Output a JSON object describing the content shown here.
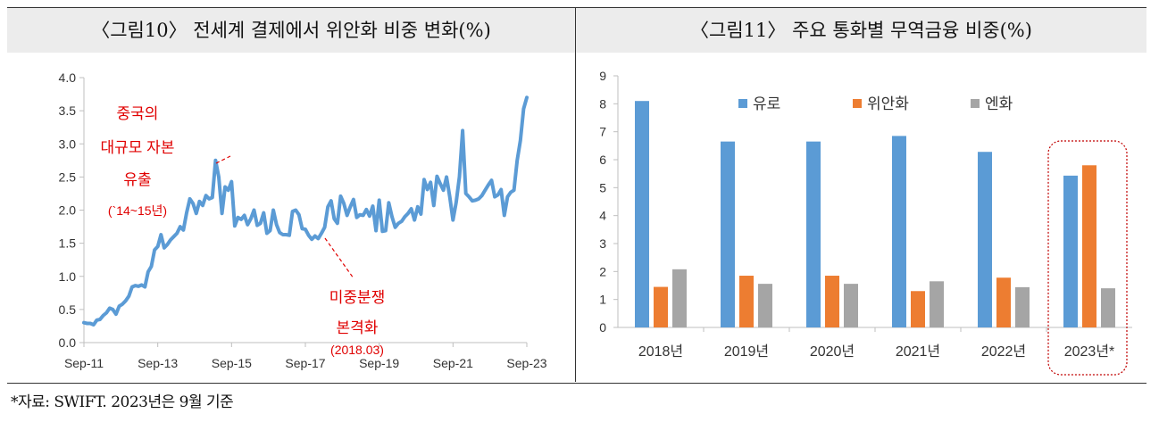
{
  "left_title": "〈그림10〉 전세계 결제에서 위안화 비중 변화(%)",
  "right_title": "〈그림11〉 주요 통화별 무역금융 비중(%)",
  "footnote": "*자료: SWIFT. 2023년은 9월 기준",
  "colors": {
    "line": "#5b9bd5",
    "euro": "#5b9bd5",
    "yuan": "#ed7d31",
    "yen": "#a5a5a5",
    "annotation": "#e00000",
    "axis": "#bfbfbf"
  },
  "chart_data": [
    {
      "type": "line",
      "x_tick_labels": [
        "Sep-11",
        "Sep-13",
        "Sep-15",
        "Sep-17",
        "Sep-19",
        "Sep-21",
        "Sep-23"
      ],
      "y_tick_labels": [
        "0.0",
        "0.5",
        "1.0",
        "1.5",
        "2.0",
        "2.5",
        "3.0",
        "3.5",
        "4.0"
      ],
      "ylim": [
        0,
        4
      ],
      "x_unit": "months since Sep-11",
      "annotations": [
        {
          "lines": [
            "중국의",
            "대규모 자본",
            "유출",
            "(`14~15년)"
          ]
        },
        {
          "lines": [
            "미중분쟁",
            "본격화",
            "(2018.03)"
          ]
        }
      ],
      "series": [
        {
          "values": [
            0.3,
            0.29,
            0.29,
            0.27,
            0.34,
            0.35,
            0.41,
            0.45,
            0.52,
            0.5,
            0.43,
            0.55,
            0.58,
            0.63,
            0.7,
            0.84,
            0.86,
            0.85,
            0.87,
            0.84,
            1.07,
            1.15,
            1.4,
            1.45,
            1.63,
            1.43,
            1.48,
            1.55,
            1.6,
            1.65,
            1.75,
            1.7,
            1.96,
            2.17,
            2.1,
            1.95,
            2.13,
            2.07,
            2.22,
            2.17,
            2.19,
            2.75,
            2.5,
            1.95,
            2.35,
            2.3,
            2.43,
            1.76,
            1.89,
            1.86,
            1.92,
            1.78,
            1.87,
            2.0,
            1.77,
            1.8,
            1.96,
            1.65,
            1.69,
            2.0,
            1.78,
            1.66,
            1.63,
            1.63,
            1.62,
            1.98,
            2.0,
            1.93,
            1.72,
            1.71,
            1.62,
            1.56,
            1.61,
            1.57,
            1.65,
            1.74,
            2.05,
            2.14,
            1.87,
            1.8,
            2.21,
            2.1,
            1.92,
            2.05,
            2.16,
            1.89,
            1.93,
            1.92,
            2.01,
            1.91,
            2.06,
            1.69,
            2.15,
            1.68,
            1.69,
            2.11,
            1.9,
            1.74,
            1.8,
            1.83,
            1.9,
            1.95,
            2.02,
            1.85,
            2.05,
            1.94,
            2.46,
            2.31,
            2.42,
            2.07,
            2.51,
            2.4,
            2.3,
            2.5,
            2.2,
            1.85,
            2.12,
            2.5,
            3.2,
            2.25,
            2.2,
            2.14,
            2.15,
            2.17,
            2.22,
            2.3,
            2.38,
            2.45,
            2.2,
            2.23,
            2.31,
            1.92,
            2.2,
            2.27,
            2.3,
            2.75,
            3.05,
            3.53,
            3.7
          ]
        }
      ]
    },
    {
      "type": "bar",
      "categories": [
        "2018년",
        "2019년",
        "2020년",
        "2021년",
        "2022년",
        "2023년*"
      ],
      "ylim": [
        0,
        9
      ],
      "y_tick_labels": [
        "0",
        "1",
        "2",
        "3",
        "4",
        "5",
        "6",
        "7",
        "8",
        "9"
      ],
      "series": [
        {
          "name": "유로",
          "values": [
            8.1,
            6.65,
            6.65,
            6.85,
            6.28,
            5.43
          ]
        },
        {
          "name": "위안화",
          "values": [
            1.45,
            1.85,
            1.85,
            1.3,
            1.78,
            5.8
          ]
        },
        {
          "name": "엔화",
          "values": [
            2.08,
            1.56,
            1.56,
            1.65,
            1.44,
            1.4
          ]
        }
      ],
      "legend": "top"
    }
  ]
}
